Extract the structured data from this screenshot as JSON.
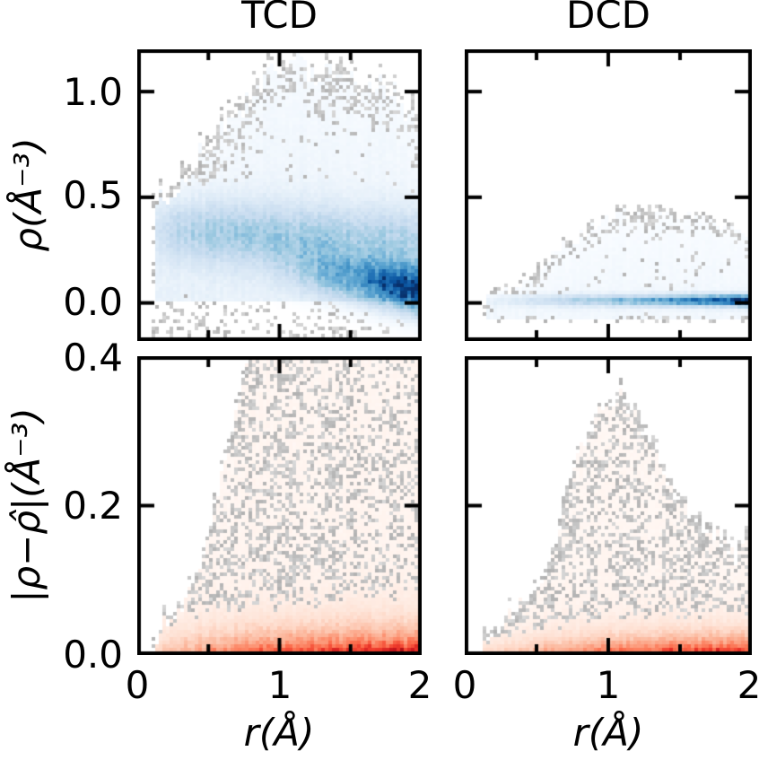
{
  "figure": {
    "column_titles": {
      "left": "TCD",
      "right": "DCD"
    },
    "ylabel_top": "ρ(Å⁻³)",
    "ylabel_bottom": "|ρ−ρ̂|(Å⁻³)",
    "xlabel": "r(Å)",
    "y_ticks_top": [
      "1.0",
      "0.5",
      "0.0"
    ],
    "y_ticks_bottom": [
      "0.4",
      "0.2",
      "0.0"
    ],
    "x_ticks": [
      "0",
      "1",
      "2"
    ],
    "colors": {
      "background": "#ffffff",
      "axis": "#000000",
      "speckle_gray": "#c4c4c4",
      "blue_dark": "#08306b",
      "red_dark": "#b11218"
    }
  },
  "chart_data": {
    "type": "heatmap",
    "description": "2x2 grid of 2D density histograms. Top row: electron density rho vs r for TCD and DCD models (Blues colormap). Bottom row: absolute error |rho - rho_hat| vs r (Reds colormap). Low-count bins render as scattered gray speckles.",
    "colormaps": {
      "blues": [
        [
          0,
          "#ffffff"
        ],
        [
          0.03,
          "#f7fbff"
        ],
        [
          0.13,
          "#deebf7"
        ],
        [
          0.26,
          "#c6dbef"
        ],
        [
          0.39,
          "#9ecae1"
        ],
        [
          0.52,
          "#6baed6"
        ],
        [
          0.65,
          "#4292c6"
        ],
        [
          0.78,
          "#2171b5"
        ],
        [
          0.9,
          "#08519c"
        ],
        [
          1,
          "#08306b"
        ]
      ],
      "reds": [
        [
          0,
          "#ffffff"
        ],
        [
          0.03,
          "#fff5f0"
        ],
        [
          0.13,
          "#fee0d2"
        ],
        [
          0.26,
          "#fcbba1"
        ],
        [
          0.39,
          "#fc9272"
        ],
        [
          0.52,
          "#fb6a4a"
        ],
        [
          0.65,
          "#ef3b2c"
        ],
        [
          0.78,
          "#cb181d"
        ],
        [
          0.9,
          "#a50f15"
        ],
        [
          1,
          "#67000d"
        ]
      ]
    },
    "panels": [
      {
        "id": "tcd-density",
        "title": "TCD",
        "row": 0,
        "col": 0,
        "xlim": [
          0,
          2
        ],
        "ylim": [
          -0.18,
          1.2
        ],
        "x_major": [
          0,
          1,
          2
        ],
        "x_minor": [
          0.5,
          1.5
        ],
        "y_major": [
          0,
          0.5,
          1
        ],
        "colormap": "blues",
        "seed": 7,
        "r_start": 0.12,
        "lower_bound": -0.17,
        "upper_envelope": [
          [
            0.12,
            0.45
          ],
          [
            0.2,
            0.5
          ],
          [
            0.35,
            0.62
          ],
          [
            0.5,
            0.74
          ],
          [
            0.65,
            0.84
          ],
          [
            0.8,
            0.95
          ],
          [
            0.95,
            1.08
          ],
          [
            1.05,
            1.14
          ],
          [
            1.15,
            1.12
          ],
          [
            1.25,
            1.08
          ],
          [
            1.35,
            1.12
          ],
          [
            1.5,
            1.05
          ],
          [
            1.6,
            0.99
          ],
          [
            1.7,
            1.04
          ],
          [
            1.8,
            1.0
          ],
          [
            1.9,
            0.92
          ],
          [
            2.0,
            0.86
          ]
        ],
        "components": [
          {
            "kind": "gauss",
            "center0": 0.35,
            "center_slope": -0.03,
            "sigma": 0.1,
            "amp": [
              [
                0.12,
                0.1
              ],
              [
                0.3,
                0.24
              ],
              [
                0.6,
                0.3
              ],
              [
                1.0,
                0.3
              ],
              [
                1.4,
                0.28
              ],
              [
                2,
                0.26
              ]
            ]
          },
          {
            "kind": "gauss",
            "center0": 0.3,
            "center_slope": -0.12,
            "sigma": 0.075,
            "amp": [
              [
                0,
                0
              ],
              [
                0.9,
                0.02
              ],
              [
                1.2,
                0.22
              ],
              [
                1.5,
                0.48
              ],
              [
                1.7,
                0.66
              ],
              [
                1.85,
                0.85
              ],
              [
                2,
                1.05
              ]
            ]
          },
          {
            "kind": "haze",
            "amp": 0.085,
            "top_fade": 0.6,
            "ymin": 0
          }
        ],
        "speckle": {
          "p_in": 0.05,
          "p_edge": 0.38,
          "edge_band": 0.15,
          "p_subzero": 0.2,
          "speckle_floor": 0
        },
        "summary": "Broad blue band near rho=0.3 for all r; dense dark-blue lobe at r=1.3-2.0, rho=0-0.2, darkest at r=2; speckled support up to rho=1.15 near r=1 and down to rho=-0.17."
      },
      {
        "id": "dcd-density",
        "title": "DCD",
        "row": 0,
        "col": 1,
        "xlim": [
          0,
          2
        ],
        "ylim": [
          -0.18,
          1.2
        ],
        "x_major": [
          0,
          1,
          2
        ],
        "x_minor": [
          0.5,
          1.5
        ],
        "y_major": [
          0,
          0.5,
          1
        ],
        "colormap": "blues",
        "seed": 13,
        "r_start": 0.15,
        "lower_bound": -0.09,
        "upper_envelope": [
          [
            0.15,
            0.02
          ],
          [
            0.3,
            0.06
          ],
          [
            0.45,
            0.12
          ],
          [
            0.55,
            0.18
          ],
          [
            0.65,
            0.26
          ],
          [
            0.78,
            0.31
          ],
          [
            0.9,
            0.36
          ],
          [
            1.05,
            0.41
          ],
          [
            1.2,
            0.43
          ],
          [
            1.35,
            0.44
          ],
          [
            1.5,
            0.42
          ],
          [
            1.65,
            0.4
          ],
          [
            1.78,
            0.36
          ],
          [
            1.9,
            0.33
          ],
          [
            2.0,
            0.3
          ]
        ],
        "components": [
          {
            "kind": "gauss",
            "center0": 0.012,
            "center_slope": 0,
            "sigma": 0.018,
            "amp": [
              [
                0,
                0
              ],
              [
                0.3,
                0.08
              ],
              [
                0.6,
                0.2
              ],
              [
                1.0,
                0.35
              ],
              [
                1.4,
                0.55
              ],
              [
                1.7,
                0.75
              ],
              [
                1.9,
                0.92
              ],
              [
                2,
                1.02
              ]
            ]
          },
          {
            "kind": "haze",
            "amp": 0.05,
            "top_fade": 0.55,
            "ymin": -0.07
          }
        ],
        "speckle": {
          "p_in": 0.05,
          "p_edge": 0.42,
          "edge_band": 0.06,
          "p_subzero": 0,
          "speckle_floor": -0.07,
          "lower_line": -0.08
        },
        "summary": "Thin dark-blue horizontal band at rho=0 intensifying toward r=2; faint haze hump peaking near rho=0.44 around r=1.2-1.4; thin gray speckle line near rho=-0.08."
      },
      {
        "id": "tcd-error",
        "title": "TCD",
        "row": 1,
        "col": 0,
        "xlim": [
          0,
          2
        ],
        "ylim": [
          0,
          0.4
        ],
        "x_major": [
          0,
          1,
          2
        ],
        "x_minor": [
          0.5,
          1.5
        ],
        "y_major": [
          0,
          0.2,
          0.4
        ],
        "colormap": "reds",
        "seed": 21,
        "r_start": 0.12,
        "lower_bound": 0,
        "upper_envelope": [
          [
            0.12,
            0.025
          ],
          [
            0.25,
            0.05
          ],
          [
            0.38,
            0.09
          ],
          [
            0.5,
            0.16
          ],
          [
            0.6,
            0.25
          ],
          [
            0.7,
            0.33
          ],
          [
            0.8,
            0.42
          ],
          [
            0.9,
            0.46
          ],
          [
            2.0,
            0.46
          ]
        ],
        "components": [
          {
            "kind": "floor",
            "scale": 0.024,
            "amp": [
              [
                0,
                0.08
              ],
              [
                0.3,
                0.3
              ],
              [
                0.6,
                0.5
              ],
              [
                1.0,
                0.68
              ],
              [
                1.4,
                0.8
              ],
              [
                2,
                0.9
              ]
            ]
          },
          {
            "kind": "haze",
            "amp": 0.035,
            "top_fade": 0.25,
            "ymin": 0
          }
        ],
        "speckle": {
          "p_in": 0.42,
          "p_edge": 0.45,
          "edge_band": 0.035,
          "p_fade": {
            "r0": 1.5,
            "rw": 0.5,
            "y0": 0.22,
            "yw": 0.18,
            "f": 0.6
          }
        },
        "summary": "Dark red error layer hugging |rho-rho_hat|=0, strengthening with r; dense gray speckle field filling a wedge that reaches the 0.4 top for r>0.85."
      },
      {
        "id": "dcd-error",
        "title": "DCD",
        "row": 1,
        "col": 1,
        "xlim": [
          0,
          2
        ],
        "ylim": [
          0,
          0.4
        ],
        "x_major": [
          0,
          1,
          2
        ],
        "x_minor": [
          0.5,
          1.5
        ],
        "y_major": [
          0,
          0.2,
          0.4
        ],
        "colormap": "reds",
        "seed": 42,
        "r_start": 0.12,
        "lower_bound": 0,
        "upper_envelope": [
          [
            0.12,
            0.015
          ],
          [
            0.3,
            0.05
          ],
          [
            0.5,
            0.08
          ],
          [
            0.6,
            0.12
          ],
          [
            0.7,
            0.2
          ],
          [
            0.8,
            0.27
          ],
          [
            0.9,
            0.31
          ],
          [
            1.0,
            0.34
          ],
          [
            1.1,
            0.35
          ],
          [
            1.2,
            0.31
          ],
          [
            1.3,
            0.28
          ],
          [
            1.45,
            0.22
          ],
          [
            1.6,
            0.18
          ],
          [
            1.75,
            0.16
          ],
          [
            1.9,
            0.13
          ],
          [
            2.0,
            0.17
          ]
        ],
        "components": [
          {
            "kind": "floor",
            "scale": 0.018,
            "amp": [
              [
                0,
                0.08
              ],
              [
                0.3,
                0.22
              ],
              [
                0.7,
                0.45
              ],
              [
                1.2,
                0.7
              ],
              [
                1.7,
                0.82
              ],
              [
                2,
                0.9
              ]
            ]
          },
          {
            "kind": "haze",
            "amp": 0.03,
            "top_fade": 0.25,
            "ymin": 0
          }
        ],
        "speckle": {
          "p_in": 0.38,
          "p_edge": 0.45,
          "edge_band": 0.03
        },
        "summary": "Thin dark red error layer at the bottom growing with r; gray speckle triangle peaking near 0.35 at r=1.05, tapering to ~0.15 at r=2."
      }
    ]
  }
}
